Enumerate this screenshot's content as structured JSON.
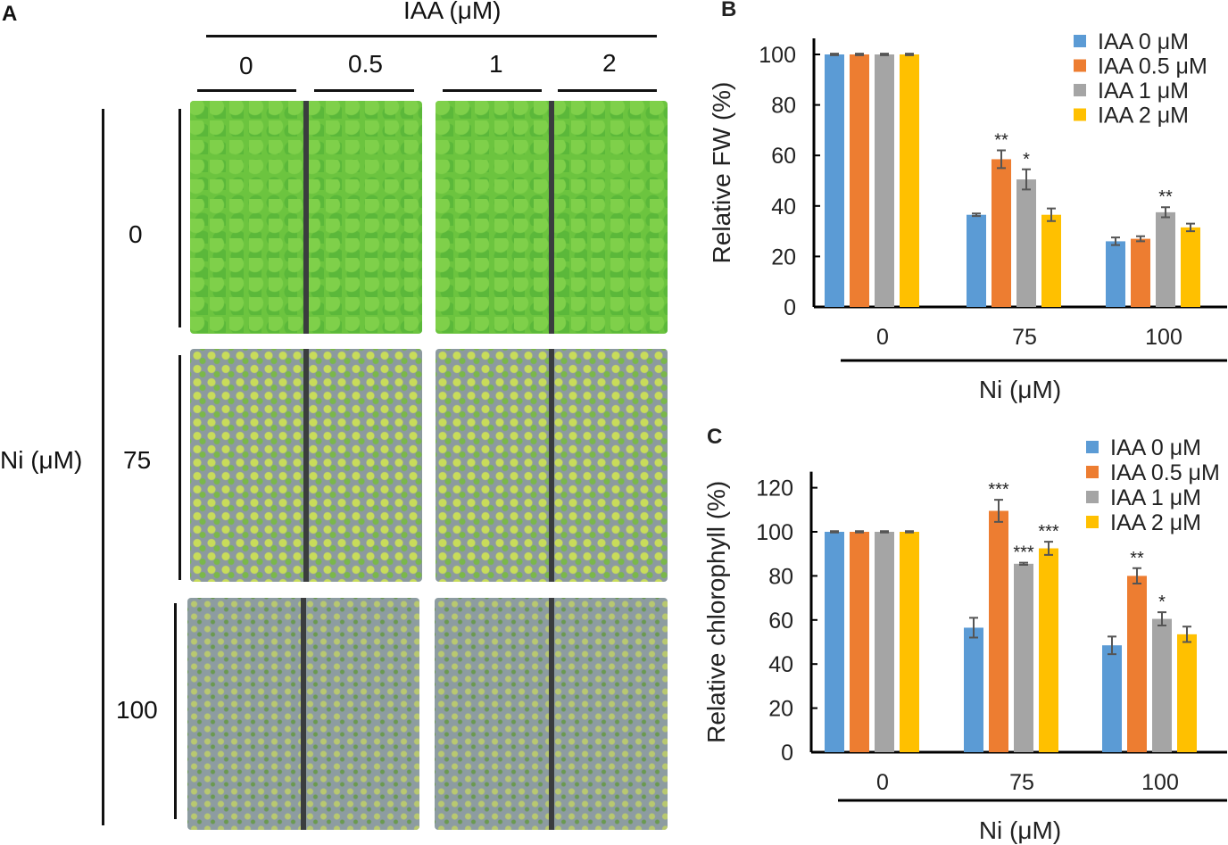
{
  "panel_a": {
    "label": "A",
    "iaa_title": "IAA (μM)",
    "iaa_levels": [
      "0",
      "0.5",
      "1",
      "2"
    ],
    "ni_title": "Ni (μM)",
    "ni_levels": [
      "0",
      "75",
      "100"
    ]
  },
  "colors": [
    "#5b9bd5",
    "#ed7d31",
    "#a5a5a5",
    "#ffc000"
  ],
  "chart_data": [
    {
      "type": "bar",
      "panel": "B",
      "title": "",
      "xlabel": "Ni (μM)",
      "ylabel": "Relative FW (%)",
      "ylim": [
        0,
        100
      ],
      "yticks": [
        "0",
        "20",
        "40",
        "60",
        "80",
        "100"
      ],
      "categories": [
        "0",
        "75",
        "100"
      ],
      "series": [
        {
          "name": "IAA 0 μM",
          "values": [
            100,
            36.5,
            26
          ],
          "errors": [
            0.3,
            0.5,
            1.5
          ],
          "sig": [
            "",
            "",
            ""
          ]
        },
        {
          "name": "IAA 0.5 μM",
          "values": [
            100,
            58.5,
            27
          ],
          "errors": [
            0.3,
            3.5,
            1
          ],
          "sig": [
            "",
            "**",
            ""
          ]
        },
        {
          "name": "IAA 1 μM",
          "values": [
            100,
            50.5,
            37.5
          ],
          "errors": [
            0.3,
            4,
            2
          ],
          "sig": [
            "",
            "*",
            "**"
          ]
        },
        {
          "name": "IAA 2 μM",
          "values": [
            100,
            36.5,
            31.5
          ],
          "errors": [
            0.3,
            2.5,
            1.5
          ],
          "sig": [
            "",
            "",
            ""
          ]
        }
      ],
      "legend": "top-right"
    },
    {
      "type": "bar",
      "panel": "C",
      "title": "",
      "xlabel": "Ni (μM)",
      "ylabel": "Relative chlorophyll (%)",
      "ylim": [
        0,
        120
      ],
      "yticks": [
        "0",
        "20",
        "40",
        "60",
        "80",
        "100",
        "120"
      ],
      "categories": [
        "0",
        "75",
        "100"
      ],
      "series": [
        {
          "name": "IAA 0 μM",
          "values": [
            100,
            56.5,
            48.5
          ],
          "errors": [
            0.3,
            4.5,
            4
          ],
          "sig": [
            "",
            "",
            ""
          ]
        },
        {
          "name": "IAA 0.5 μM",
          "values": [
            100,
            109.5,
            80
          ],
          "errors": [
            0.3,
            5,
            3.5
          ],
          "sig": [
            "",
            "***",
            "**"
          ]
        },
        {
          "name": "IAA 1 μM",
          "values": [
            100,
            85.5,
            60.5
          ],
          "errors": [
            0.3,
            0.5,
            3
          ],
          "sig": [
            "",
            "***",
            "*"
          ]
        },
        {
          "name": "IAA 2 μM",
          "values": [
            100,
            92.5,
            53.5
          ],
          "errors": [
            0.3,
            3,
            3.5
          ],
          "sig": [
            "",
            "***",
            ""
          ]
        }
      ],
      "legend": "top-right"
    }
  ]
}
